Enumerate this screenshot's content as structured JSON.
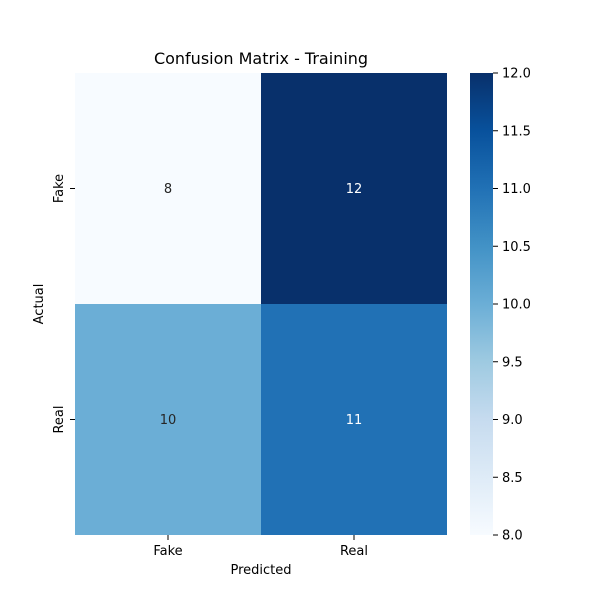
{
  "chart_data": {
    "type": "heatmap",
    "title": "Confusion Matrix - Training",
    "xlabel": "Predicted",
    "ylabel": "Actual",
    "x_categories": [
      "Fake",
      "Real"
    ],
    "y_categories": [
      "Fake",
      "Real"
    ],
    "values": [
      [
        8,
        12
      ],
      [
        10,
        11
      ]
    ],
    "colorbar": {
      "range": [
        8.0,
        12.0
      ],
      "ticks": [
        "8.0",
        "8.5",
        "9.0",
        "9.5",
        "10.0",
        "10.5",
        "11.0",
        "11.5",
        "12.0"
      ],
      "colormap": "Blues"
    },
    "annotations": true,
    "grid": false
  }
}
